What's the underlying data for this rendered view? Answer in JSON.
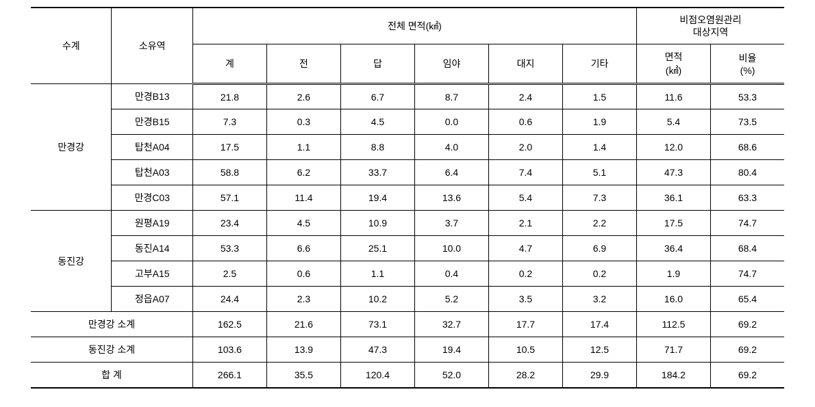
{
  "headers": {
    "h_basin": "수계",
    "h_sub": "소유역",
    "h_total_area": "전체 면적(㎢)",
    "h_nps": "비점오염원관리\n대상지역",
    "h_total": "계",
    "h_jeon": "전",
    "h_dap": "답",
    "h_imya": "임야",
    "h_daeji": "대지",
    "h_gita": "기타",
    "h_area": "면적\n(㎢)",
    "h_ratio": "비율\n(%)"
  },
  "basins": {
    "mk": "만경강",
    "dj": "동진강"
  },
  "rows": {
    "r0": {
      "sub": "만경B13",
      "c0": "21.8",
      "c1": "2.6",
      "c2": "6.7",
      "c3": "8.7",
      "c4": "2.4",
      "c5": "1.5",
      "c6": "11.6",
      "c7": "53.3"
    },
    "r1": {
      "sub": "만경B15",
      "c0": "7.3",
      "c1": "0.3",
      "c2": "4.5",
      "c3": "0.0",
      "c4": "0.6",
      "c5": "1.9",
      "c6": "5.4",
      "c7": "73.5"
    },
    "r2": {
      "sub": "탑천A04",
      "c0": "17.5",
      "c1": "1.1",
      "c2": "8.8",
      "c3": "4.0",
      "c4": "2.0",
      "c5": "1.4",
      "c6": "12.0",
      "c7": "68.6"
    },
    "r3": {
      "sub": "탑천A03",
      "c0": "58.8",
      "c1": "6.2",
      "c2": "33.7",
      "c3": "6.4",
      "c4": "7.4",
      "c5": "5.1",
      "c6": "47.3",
      "c7": "80.4"
    },
    "r4": {
      "sub": "만경C03",
      "c0": "57.1",
      "c1": "11.4",
      "c2": "19.4",
      "c3": "13.6",
      "c4": "5.4",
      "c5": "7.3",
      "c6": "36.1",
      "c7": "63.3"
    },
    "r5": {
      "sub": "원평A19",
      "c0": "23.4",
      "c1": "4.5",
      "c2": "10.9",
      "c3": "3.7",
      "c4": "2.1",
      "c5": "2.2",
      "c6": "17.5",
      "c7": "74.7"
    },
    "r6": {
      "sub": "동진A14",
      "c0": "53.3",
      "c1": "6.6",
      "c2": "25.1",
      "c3": "10.0",
      "c4": "4.7",
      "c5": "6.9",
      "c6": "36.4",
      "c7": "68.4"
    },
    "r7": {
      "sub": "고부A15",
      "c0": "2.5",
      "c1": "0.6",
      "c2": "1.1",
      "c3": "0.4",
      "c4": "0.2",
      "c5": "0.2",
      "c6": "1.9",
      "c7": "74.7"
    },
    "r8": {
      "sub": "정읍A07",
      "c0": "24.4",
      "c1": "2.3",
      "c2": "10.2",
      "c3": "5.2",
      "c4": "3.5",
      "c5": "3.2",
      "c6": "16.0",
      "c7": "65.4"
    }
  },
  "subtotals": {
    "mk": {
      "label": "만경강 소계",
      "c0": "162.5",
      "c1": "21.6",
      "c2": "73.1",
      "c3": "32.7",
      "c4": "17.7",
      "c5": "17.4",
      "c6": "112.5",
      "c7": "69.2"
    },
    "dj": {
      "label": "동진강 소계",
      "c0": "103.6",
      "c1": "13.9",
      "c2": "47.3",
      "c3": "19.4",
      "c4": "10.5",
      "c5": "12.5",
      "c6": "71.7",
      "c7": "69.2"
    },
    "total": {
      "label": "합  계",
      "c0": "266.1",
      "c1": "35.5",
      "c2": "120.4",
      "c3": "52.0",
      "c4": "28.2",
      "c5": "29.9",
      "c6": "184.2",
      "c7": "69.2"
    }
  }
}
